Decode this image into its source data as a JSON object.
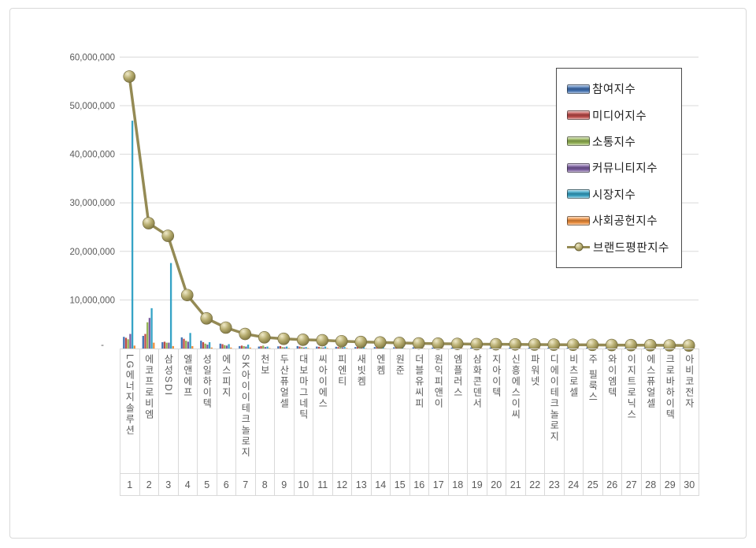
{
  "legend": {
    "items": [
      {
        "label": "참여지수",
        "color": "#4272B4",
        "type": "bar"
      },
      {
        "label": "미디어지수",
        "color": "#BE4B48",
        "type": "bar"
      },
      {
        "label": "소통지수",
        "color": "#94B354",
        "type": "bar"
      },
      {
        "label": "커뮤니티지수",
        "color": "#7A5CA0",
        "type": "bar"
      },
      {
        "label": "시장지수",
        "color": "#35A3C6",
        "type": "bar"
      },
      {
        "label": "사회공헌지수",
        "color": "#EF8E3B",
        "type": "bar"
      },
      {
        "label": "브랜드평판지수",
        "color": "#948A54",
        "type": "line"
      }
    ]
  },
  "y_axis": {
    "tick_labels": [
      "-",
      "10,000,000",
      "20,000,000",
      "30,000,000",
      "40,000,000",
      "50,000,000",
      "60,000,000"
    ],
    "tick_values": [
      0,
      10000000,
      20000000,
      30000000,
      40000000,
      50000000,
      60000000
    ]
  },
  "x_axis": {
    "ranks": [
      1,
      2,
      3,
      4,
      5,
      6,
      7,
      8,
      9,
      10,
      11,
      12,
      13,
      14,
      15,
      16,
      17,
      18,
      19,
      20,
      21,
      22,
      23,
      24,
      25,
      26,
      27,
      28,
      29,
      30
    ]
  },
  "chart_data": {
    "type": "bar+line",
    "title": "",
    "categories": [
      "LG에너지솔루션",
      "에코프로비엠",
      "삼성SDI",
      "엘앤에프",
      "성일하이텍",
      "에스피지",
      "SK아이이테크놀로지",
      "천보",
      "두산퓨얼셀",
      "대보마그네틱",
      "씨아이에스",
      "피엔티",
      "새빗켐",
      "엔켐",
      "원준",
      "더블유씨피",
      "원익피앤이",
      "엠플러스",
      "삼화콘덴서",
      "지아이텍",
      "신흥에스이씨",
      "파워넷",
      "디에이테크놀로지",
      "비츠로셀",
      "주 필룩스",
      "와이엠텍",
      "이지트로닉스",
      "에스퓨얼셀",
      "크로바하이텍",
      "아비코전자"
    ],
    "series": [
      {
        "name": "참여지수",
        "color": "#4272B4",
        "values": [
          2400000,
          2600000,
          1300000,
          2300000,
          1600000,
          1000000,
          500000,
          400000,
          450000,
          500000,
          400000,
          350000,
          300000,
          300000,
          250000,
          250000,
          200000,
          200000,
          200000,
          200000,
          180000,
          180000,
          170000,
          170000,
          160000,
          160000,
          150000,
          150000,
          140000,
          140000
        ]
      },
      {
        "name": "미디어지수",
        "color": "#BE4B48",
        "values": [
          2200000,
          3000000,
          1400000,
          2000000,
          1300000,
          900000,
          600000,
          500000,
          500000,
          400000,
          350000,
          300000,
          300000,
          250000,
          250000,
          200000,
          200000,
          200000,
          200000,
          180000,
          180000,
          170000,
          170000,
          160000,
          160000,
          150000,
          150000,
          140000,
          140000,
          130000
        ]
      },
      {
        "name": "소통지수",
        "color": "#94B354",
        "values": [
          1900000,
          5400000,
          1200000,
          1600000,
          1000000,
          700000,
          500000,
          600000,
          300000,
          300000,
          250000,
          250000,
          250000,
          200000,
          200000,
          150000,
          150000,
          150000,
          150000,
          150000,
          140000,
          130000,
          130000,
          120000,
          120000,
          110000,
          110000,
          100000,
          100000,
          100000
        ]
      },
      {
        "name": "커뮤니티지수",
        "color": "#7A5CA0",
        "values": [
          3000000,
          6300000,
          1200000,
          1400000,
          800000,
          600000,
          400000,
          300000,
          250000,
          200000,
          200000,
          200000,
          150000,
          150000,
          150000,
          150000,
          150000,
          100000,
          100000,
          100000,
          100000,
          100000,
          100000,
          100000,
          90000,
          90000,
          90000,
          80000,
          80000,
          80000
        ]
      },
      {
        "name": "시장지수",
        "color": "#35A3C6",
        "values": [
          46900000,
          8300000,
          17600000,
          3200000,
          1300000,
          900000,
          800000,
          400000,
          400000,
          300000,
          400000,
          300000,
          250000,
          300000,
          250000,
          250000,
          250000,
          250000,
          200000,
          200000,
          200000,
          190000,
          180000,
          180000,
          180000,
          170000,
          160000,
          160000,
          150000,
          150000
        ]
      },
      {
        "name": "사회공헌지수",
        "color": "#EF8E3B",
        "values": [
          600000,
          1200000,
          500000,
          500000,
          200000,
          200000,
          200000,
          100000,
          100000,
          100000,
          100000,
          100000,
          50000,
          50000,
          50000,
          50000,
          50000,
          50000,
          50000,
          50000,
          50000,
          50000,
          50000,
          40000,
          40000,
          40000,
          40000,
          40000,
          40000,
          30000
        ]
      }
    ],
    "line_series": {
      "name": "브랜드평판지수",
      "color": "#948A54",
      "values": [
        56000000,
        25800000,
        23200000,
        11000000,
        6200000,
        4300000,
        3000000,
        2300000,
        2000000,
        1800000,
        1700000,
        1500000,
        1350000,
        1250000,
        1150000,
        1050000,
        1000000,
        950000,
        900000,
        880000,
        850000,
        820000,
        800000,
        770000,
        750000,
        720000,
        700000,
        680000,
        650000,
        620000
      ]
    },
    "ylim": [
      0,
      60000000
    ],
    "grid": "horizontal-only",
    "legend_position": "inside-right-top"
  },
  "colors": {
    "grid": "#D9D9D9",
    "axis_text": "#595959",
    "frame_border": "#D9D9D9",
    "background": "#FFFFFF"
  }
}
